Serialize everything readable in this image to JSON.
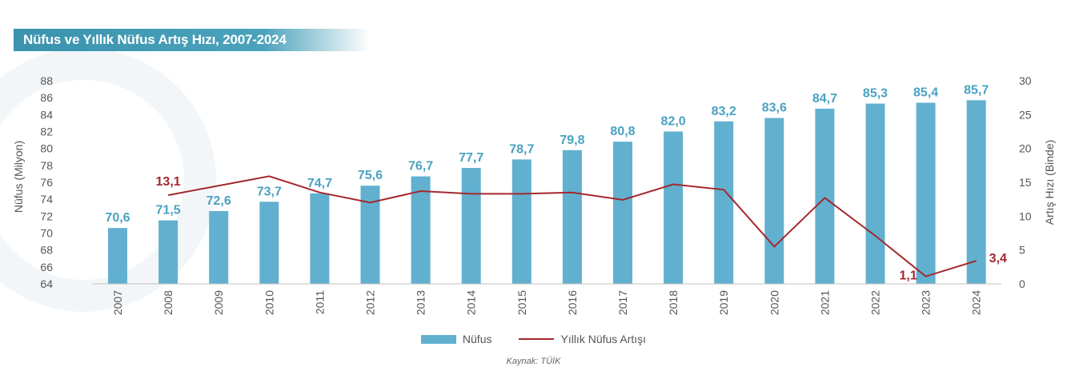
{
  "header": {
    "title": "Nüfus ve Yıllık Nüfus Artış Hızı, 2007-2024"
  },
  "chart_data": {
    "type": "bar",
    "title": "Nüfus ve Yıllık Nüfus Artış Hızı, 2007-2024",
    "categories": [
      "2007",
      "2008",
      "2009",
      "2010",
      "2011",
      "2012",
      "2013",
      "2014",
      "2015",
      "2016",
      "2017",
      "2018",
      "2019",
      "2020",
      "2021",
      "2022",
      "2023",
      "2024"
    ],
    "series": [
      {
        "name": "Nüfus",
        "type": "bar",
        "axis": "left",
        "color": "#62b0cf",
        "values": [
          70.6,
          71.5,
          72.6,
          73.7,
          74.7,
          75.6,
          76.7,
          77.7,
          78.7,
          79.8,
          80.8,
          82.0,
          83.2,
          83.6,
          84.7,
          85.3,
          85.4,
          85.7
        ],
        "labels": [
          "70,6",
          "71,5",
          "72,6",
          "73,7",
          "74,7",
          "75,6",
          "76,7",
          "77,7",
          "78,7",
          "79,8",
          "80,8",
          "82,0",
          "83,2",
          "83,6",
          "84,7",
          "85,3",
          "85,4",
          "85,7"
        ]
      },
      {
        "name": "Yıllık Nüfus Artışı",
        "type": "line",
        "axis": "right",
        "color": "#a3282e",
        "values": [
          null,
          13.1,
          14.5,
          15.9,
          13.5,
          12.0,
          13.7,
          13.3,
          13.3,
          13.5,
          12.4,
          14.7,
          13.9,
          5.5,
          12.7,
          7.1,
          1.1,
          3.4
        ],
        "annotations": [
          {
            "category": "2008",
            "label": "13,1"
          },
          {
            "category": "2023",
            "label": "1,1"
          },
          {
            "category": "2024",
            "label": "3,4"
          }
        ]
      }
    ],
    "y_left": {
      "label": "Nüfus (Milyon)",
      "ylim": [
        64,
        88
      ],
      "ticks": [
        "64",
        "66",
        "68",
        "70",
        "72",
        "74",
        "76",
        "78",
        "80",
        "82",
        "84",
        "86",
        "88"
      ]
    },
    "y_right": {
      "label": "Artış Hızı (Binde)",
      "ylim": [
        0,
        30
      ],
      "ticks": [
        "0",
        "5",
        "10",
        "15",
        "20",
        "25",
        "30"
      ]
    },
    "grid": false,
    "legend_position": "bottom-center"
  },
  "legend": {
    "bar_label": "Nüfus",
    "line_label": "Yıllık Nüfus Artışı"
  },
  "source": "Kaynak: TÜİK"
}
